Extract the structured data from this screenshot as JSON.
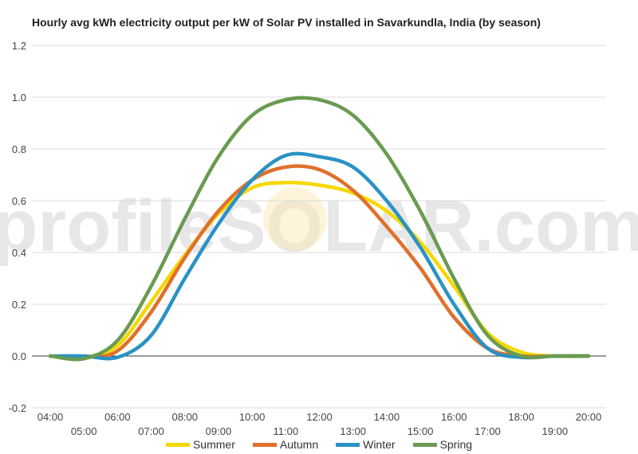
{
  "chart_data": {
    "type": "line",
    "title": "Hourly avg kWh electricity output per kW of Solar PV installed in Savarkundla, India (by season)",
    "watermark": "profileSOLAR.com",
    "x": [
      "04:00",
      "05:00",
      "06:00",
      "07:00",
      "08:00",
      "09:00",
      "10:00",
      "11:00",
      "12:00",
      "13:00",
      "14:00",
      "15:00",
      "16:00",
      "17:00",
      "18:00",
      "19:00",
      "20:00"
    ],
    "ylim": [
      -0.2,
      1.2
    ],
    "yticks": [
      "-0.2",
      "0.0",
      "0.2",
      "0.4",
      "0.6",
      "0.8",
      "1.0",
      "1.2"
    ],
    "grid": true,
    "legend_position": "bottom",
    "series": [
      {
        "name": "Summer",
        "color": "#f5d800",
        "values": [
          0,
          -0.005,
          0.04,
          0.21,
          0.39,
          0.55,
          0.65,
          0.67,
          0.66,
          0.63,
          0.56,
          0.44,
          0.27,
          0.09,
          0.015,
          0,
          0
        ]
      },
      {
        "name": "Autumn",
        "color": "#e0702a",
        "values": [
          0,
          -0.005,
          0.02,
          0.17,
          0.38,
          0.56,
          0.68,
          0.73,
          0.72,
          0.64,
          0.5,
          0.34,
          0.15,
          0.03,
          0,
          0,
          0
        ]
      },
      {
        "name": "Winter",
        "color": "#2a92c4",
        "values": [
          0,
          0,
          -0.005,
          0.08,
          0.3,
          0.51,
          0.68,
          0.775,
          0.77,
          0.73,
          0.6,
          0.42,
          0.2,
          0.03,
          -0.005,
          0,
          0
        ]
      },
      {
        "name": "Spring",
        "color": "#6a9b50",
        "values": [
          0,
          -0.01,
          0.06,
          0.27,
          0.53,
          0.77,
          0.93,
          0.99,
          0.99,
          0.93,
          0.78,
          0.56,
          0.3,
          0.08,
          0,
          0,
          0
        ]
      }
    ]
  }
}
